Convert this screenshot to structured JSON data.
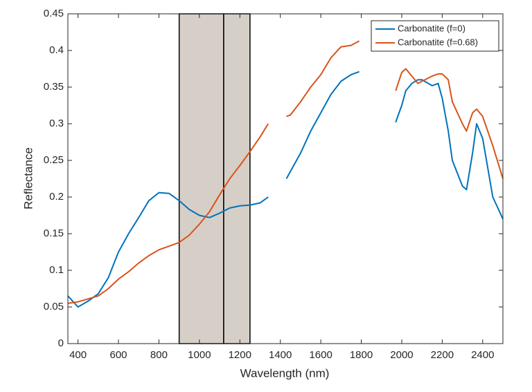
{
  "chart_data": {
    "type": "line",
    "xlabel": "Wavelength (nm)",
    "ylabel": "Reflectance",
    "x": [
      350,
      400,
      450,
      500,
      550,
      600,
      650,
      700,
      750,
      800,
      850,
      900,
      950,
      1000,
      1050,
      1100,
      1150,
      1200,
      1250,
      1300,
      1340,
      1390,
      1430,
      1450,
      1500,
      1550,
      1600,
      1650,
      1700,
      1750,
      1790,
      1880,
      1970,
      2000,
      2020,
      2050,
      2080,
      2100,
      2150,
      2180,
      2200,
      2230,
      2250,
      2300,
      2320,
      2350,
      2370,
      2400,
      2450,
      2500
    ],
    "series": [
      {
        "name": "Carbonatite (f=0)",
        "color": "#0072bd",
        "values": [
          0.065,
          0.05,
          0.058,
          0.068,
          0.09,
          0.125,
          0.15,
          0.172,
          0.195,
          0.206,
          0.205,
          0.195,
          0.183,
          0.175,
          0.172,
          0.178,
          0.185,
          0.188,
          0.189,
          0.192,
          0.2,
          null,
          0.225,
          0.235,
          0.26,
          0.29,
          0.315,
          0.34,
          0.358,
          0.367,
          0.371,
          null,
          0.302,
          0.325,
          0.345,
          0.355,
          0.36,
          0.36,
          0.352,
          0.355,
          0.335,
          0.29,
          0.25,
          0.215,
          0.21,
          0.26,
          0.3,
          0.28,
          0.2,
          0.17
        ]
      },
      {
        "name": "Carbonatite (f=0.68)",
        "color": "#d95319",
        "values": [
          0.055,
          0.057,
          0.061,
          0.065,
          0.075,
          0.088,
          0.098,
          0.11,
          0.12,
          0.128,
          0.133,
          0.138,
          0.148,
          0.163,
          0.18,
          0.203,
          0.225,
          0.243,
          0.262,
          0.282,
          0.3,
          null,
          0.31,
          0.312,
          0.33,
          0.35,
          0.367,
          0.39,
          0.405,
          0.407,
          0.413,
          null,
          0.345,
          0.37,
          0.375,
          0.365,
          0.355,
          0.358,
          0.365,
          0.368,
          0.368,
          0.36,
          0.33,
          0.3,
          0.29,
          0.315,
          0.32,
          0.31,
          0.27,
          0.225
        ]
      }
    ],
    "bands": [
      [
        900,
        1120
      ],
      [
        1120,
        1250
      ]
    ],
    "band_color": "#d6cfc7",
    "xlim": [
      350,
      2500
    ],
    "xticks": [
      400,
      600,
      800,
      1000,
      1200,
      1400,
      1600,
      1800,
      2000,
      2200,
      2400
    ],
    "ylim": [
      0,
      0.45
    ],
    "yticks": [
      0,
      0.05,
      0.1,
      0.15,
      0.2,
      0.25,
      0.3,
      0.35,
      0.4,
      0.45
    ],
    "legend": "top-right"
  }
}
